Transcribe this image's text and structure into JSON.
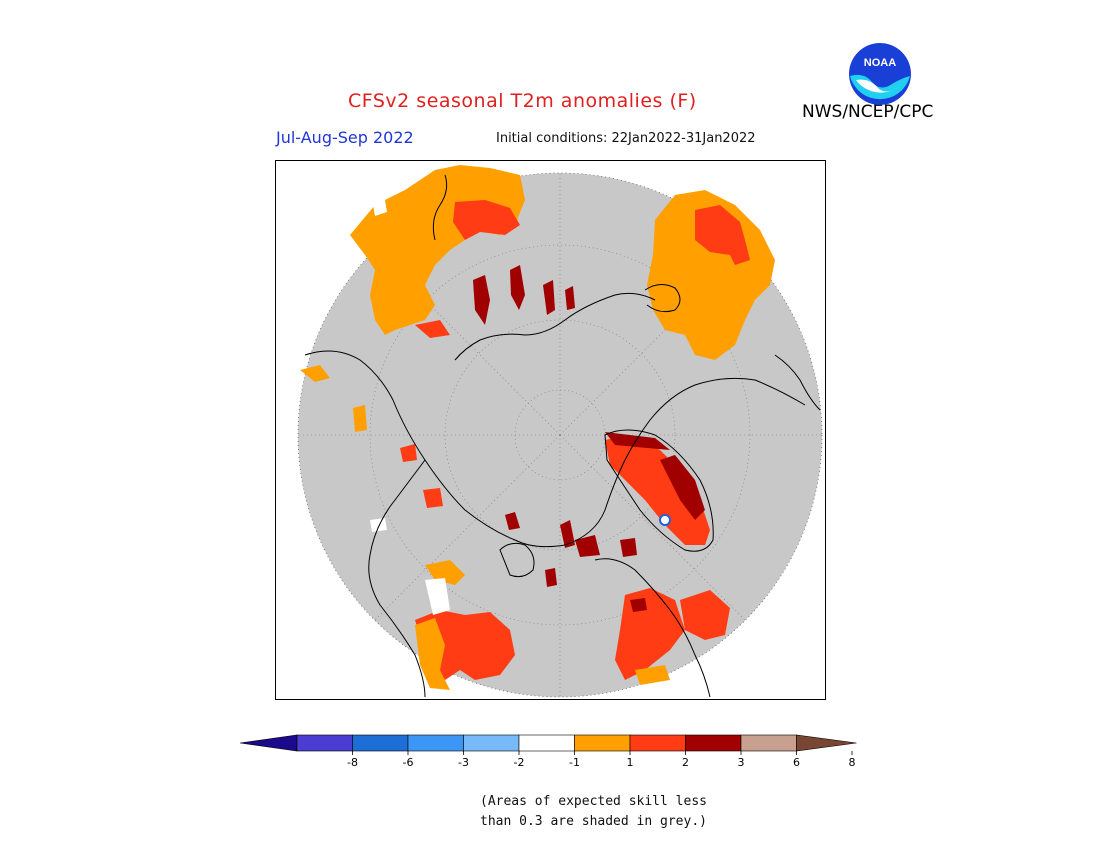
{
  "title": "CFSv2 seasonal T2m anomalies (F)",
  "season": "Jul-Aug-Sep 2022",
  "initial_conditions": "Initial conditions: 22Jan2022-31Jan2022",
  "agency": "NWS/NCEP/CPC",
  "logo_text": "NOAA",
  "note_line1": "(Areas of expected skill less",
  "note_line2": "than 0.3 are shaded in grey.)",
  "colors": {
    "skill_grey": "#c8c8c8",
    "anom_1_2": "#ffa000",
    "anom_2_3": "#ff3c14",
    "anom_3_6": "#a00000",
    "neutral": "#ffffff",
    "title_red": "#e02020",
    "season_blue": "#1f36d8"
  },
  "legend": {
    "colors": [
      "#1c0a8c",
      "#4b3cd2",
      "#1e6ed7",
      "#3c96f5",
      "#78b9fa",
      "#ffffff",
      "#ffa000",
      "#ff3c14",
      "#a00000",
      "#c8a090",
      "#784632"
    ],
    "ticks": [
      "-8",
      "-6",
      "-3",
      "-2",
      "-1",
      "1",
      "2",
      "3",
      "6",
      "8"
    ]
  }
}
